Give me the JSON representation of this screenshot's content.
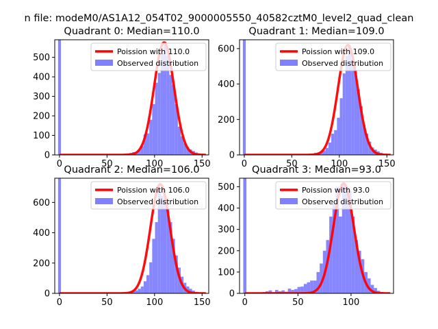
{
  "figure": {
    "suptitle": "n file: modeM0/AS1A12_054T02_9000005550_40582cztM0_level2_quad_clean"
  },
  "colors": {
    "hist": "#7f7fff",
    "poisson": "#ff0000"
  },
  "chart_data": [
    {
      "type": "bar",
      "title": "Quadrant 0: Median=110.0",
      "median": 110.0,
      "xlim": [
        -5,
        157
      ],
      "ylim": [
        0,
        590
      ],
      "xticks": [
        0,
        50,
        100,
        150
      ],
      "yticks": [
        0,
        100,
        200,
        300,
        400,
        500
      ],
      "bin_width": 3,
      "legend_position": "upper right",
      "series": [
        {
          "name": "Poission with 110.0",
          "kind": "line",
          "lambda": 110.0,
          "peak": 576
        },
        {
          "name": "Observed distribution",
          "kind": "histogram",
          "values": [
            [
              0,
              590
            ],
            [
              3,
              0
            ],
            [
              6,
              0
            ],
            [
              9,
              0
            ],
            [
              12,
              0
            ],
            [
              15,
              0
            ],
            [
              18,
              0
            ],
            [
              21,
              0
            ],
            [
              24,
              0
            ],
            [
              27,
              0
            ],
            [
              30,
              0
            ],
            [
              33,
              0
            ],
            [
              36,
              0
            ],
            [
              39,
              0
            ],
            [
              42,
              0
            ],
            [
              45,
              0
            ],
            [
              48,
              0
            ],
            [
              51,
              0
            ],
            [
              54,
              0
            ],
            [
              57,
              0
            ],
            [
              60,
              0
            ],
            [
              63,
              3
            ],
            [
              66,
              4
            ],
            [
              69,
              6
            ],
            [
              72,
              8
            ],
            [
              75,
              10
            ],
            [
              78,
              14
            ],
            [
              81,
              16
            ],
            [
              84,
              25
            ],
            [
              87,
              45
            ],
            [
              90,
              105
            ],
            [
              93,
              110
            ],
            [
              96,
              180
            ],
            [
              99,
              260
            ],
            [
              102,
              370
            ],
            [
              105,
              420
            ],
            [
              108,
              520
            ],
            [
              111,
              580
            ],
            [
              114,
              510
            ],
            [
              117,
              410
            ],
            [
              120,
              360
            ],
            [
              123,
              260
            ],
            [
              126,
              145
            ],
            [
              129,
              95
            ],
            [
              132,
              60
            ],
            [
              135,
              40
            ],
            [
              138,
              28
            ],
            [
              141,
              20
            ],
            [
              144,
              12
            ],
            [
              147,
              8
            ],
            [
              150,
              4
            ]
          ]
        }
      ]
    },
    {
      "type": "bar",
      "title": "Quadrant 1: Median=109.0",
      "median": 109.0,
      "xlim": [
        -5,
        157
      ],
      "ylim": [
        0,
        650
      ],
      "xticks": [
        0,
        50,
        100,
        150
      ],
      "yticks": [
        0,
        200,
        400,
        600
      ],
      "bin_width": 3,
      "legend_position": "upper right",
      "series": [
        {
          "name": "Poission with 109.0",
          "kind": "line",
          "lambda": 109.0,
          "peak": 620
        },
        {
          "name": "Observed distribution",
          "kind": "histogram",
          "values": [
            [
              0,
              650
            ],
            [
              3,
              0
            ],
            [
              6,
              0
            ],
            [
              9,
              0
            ],
            [
              12,
              0
            ],
            [
              15,
              0
            ],
            [
              18,
              0
            ],
            [
              21,
              0
            ],
            [
              24,
              0
            ],
            [
              27,
              0
            ],
            [
              30,
              0
            ],
            [
              33,
              0
            ],
            [
              36,
              0
            ],
            [
              39,
              0
            ],
            [
              42,
              0
            ],
            [
              45,
              0
            ],
            [
              48,
              0
            ],
            [
              51,
              0
            ],
            [
              54,
              0
            ],
            [
              57,
              0
            ],
            [
              60,
              0
            ],
            [
              63,
              3
            ],
            [
              66,
              4
            ],
            [
              69,
              6
            ],
            [
              72,
              8
            ],
            [
              75,
              12
            ],
            [
              78,
              14
            ],
            [
              81,
              18
            ],
            [
              84,
              25
            ],
            [
              87,
              40
            ],
            [
              90,
              70
            ],
            [
              93,
              120
            ],
            [
              96,
              140
            ],
            [
              99,
              210
            ],
            [
              102,
              320
            ],
            [
              105,
              460
            ],
            [
              108,
              560
            ],
            [
              111,
              615
            ],
            [
              114,
              540
            ],
            [
              117,
              480
            ],
            [
              120,
              370
            ],
            [
              123,
              275
            ],
            [
              126,
              170
            ],
            [
              129,
              120
            ],
            [
              132,
              75
            ],
            [
              135,
              42
            ],
            [
              138,
              30
            ],
            [
              141,
              20
            ],
            [
              144,
              12
            ],
            [
              147,
              6
            ],
            [
              150,
              3
            ]
          ]
        }
      ]
    },
    {
      "type": "bar",
      "title": "Quadrant 2: Median=106.0",
      "median": 106.0,
      "xlim": [
        -5,
        157
      ],
      "ylim": [
        0,
        760
      ],
      "xticks": [
        0,
        50,
        100,
        150
      ],
      "yticks": [
        0,
        200,
        400,
        600
      ],
      "bin_width": 3,
      "legend_position": "upper right",
      "series": [
        {
          "name": "Poission with 106.0",
          "kind": "line",
          "lambda": 106.0,
          "peak": 720
        },
        {
          "name": "Observed distribution",
          "kind": "histogram",
          "values": [
            [
              0,
              760
            ],
            [
              3,
              0
            ],
            [
              6,
              0
            ],
            [
              9,
              0
            ],
            [
              12,
              0
            ],
            [
              15,
              0
            ],
            [
              18,
              0
            ],
            [
              21,
              0
            ],
            [
              24,
              0
            ],
            [
              27,
              0
            ],
            [
              30,
              0
            ],
            [
              33,
              0
            ],
            [
              36,
              0
            ],
            [
              39,
              0
            ],
            [
              42,
              0
            ],
            [
              45,
              0
            ],
            [
              48,
              0
            ],
            [
              51,
              0
            ],
            [
              54,
              0
            ],
            [
              57,
              0
            ],
            [
              60,
              0
            ],
            [
              63,
              2
            ],
            [
              66,
              4
            ],
            [
              69,
              6
            ],
            [
              72,
              8
            ],
            [
              75,
              12
            ],
            [
              78,
              14
            ],
            [
              81,
              20
            ],
            [
              84,
              30
            ],
            [
              87,
              45
            ],
            [
              90,
              80
            ],
            [
              93,
              120
            ],
            [
              96,
              205
            ],
            [
              99,
              360
            ],
            [
              102,
              470
            ],
            [
              105,
              700
            ],
            [
              108,
              645
            ],
            [
              111,
              620
            ],
            [
              114,
              560
            ],
            [
              117,
              470
            ],
            [
              120,
              360
            ],
            [
              123,
              250
            ],
            [
              126,
              170
            ],
            [
              129,
              110
            ],
            [
              132,
              70
            ],
            [
              135,
              45
            ],
            [
              138,
              30
            ],
            [
              141,
              18
            ],
            [
              144,
              10
            ],
            [
              147,
              6
            ],
            [
              150,
              3
            ]
          ]
        }
      ]
    },
    {
      "type": "bar",
      "title": "Quadrant 3: Median=93.0",
      "median": 93.0,
      "xlim": [
        -5,
        140
      ],
      "ylim": [
        0,
        540
      ],
      "xticks": [
        0,
        50,
        100
      ],
      "yticks": [
        0,
        100,
        200,
        300,
        400,
        500
      ],
      "bin_width": 3,
      "legend_position": "upper right",
      "series": [
        {
          "name": "Poission with 93.0",
          "kind": "line",
          "lambda": 93.0,
          "peak": 515
        },
        {
          "name": "Observed distribution",
          "kind": "histogram",
          "values": [
            [
              0,
              540
            ],
            [
              3,
              0
            ],
            [
              6,
              0
            ],
            [
              9,
              0
            ],
            [
              12,
              0
            ],
            [
              15,
              0
            ],
            [
              18,
              6
            ],
            [
              21,
              10
            ],
            [
              24,
              14
            ],
            [
              27,
              6
            ],
            [
              30,
              16
            ],
            [
              33,
              10
            ],
            [
              36,
              14
            ],
            [
              39,
              8
            ],
            [
              42,
              22
            ],
            [
              45,
              16
            ],
            [
              48,
              20
            ],
            [
              51,
              30
            ],
            [
              54,
              32
            ],
            [
              57,
              44
            ],
            [
              60,
              52
            ],
            [
              63,
              60
            ],
            [
              66,
              60
            ],
            [
              69,
              100
            ],
            [
              72,
              140
            ],
            [
              75,
              200
            ],
            [
              78,
              250
            ],
            [
              81,
              360
            ],
            [
              84,
              420
            ],
            [
              87,
              500
            ],
            [
              90,
              360
            ],
            [
              93,
              520
            ],
            [
              96,
              500
            ],
            [
              99,
              480
            ],
            [
              102,
              360
            ],
            [
              105,
              250
            ],
            [
              108,
              200
            ],
            [
              111,
              160
            ],
            [
              114,
              100
            ],
            [
              117,
              70
            ],
            [
              120,
              40
            ],
            [
              123,
              25
            ],
            [
              126,
              12
            ],
            [
              129,
              6
            ],
            [
              132,
              3
            ]
          ]
        }
      ]
    }
  ]
}
